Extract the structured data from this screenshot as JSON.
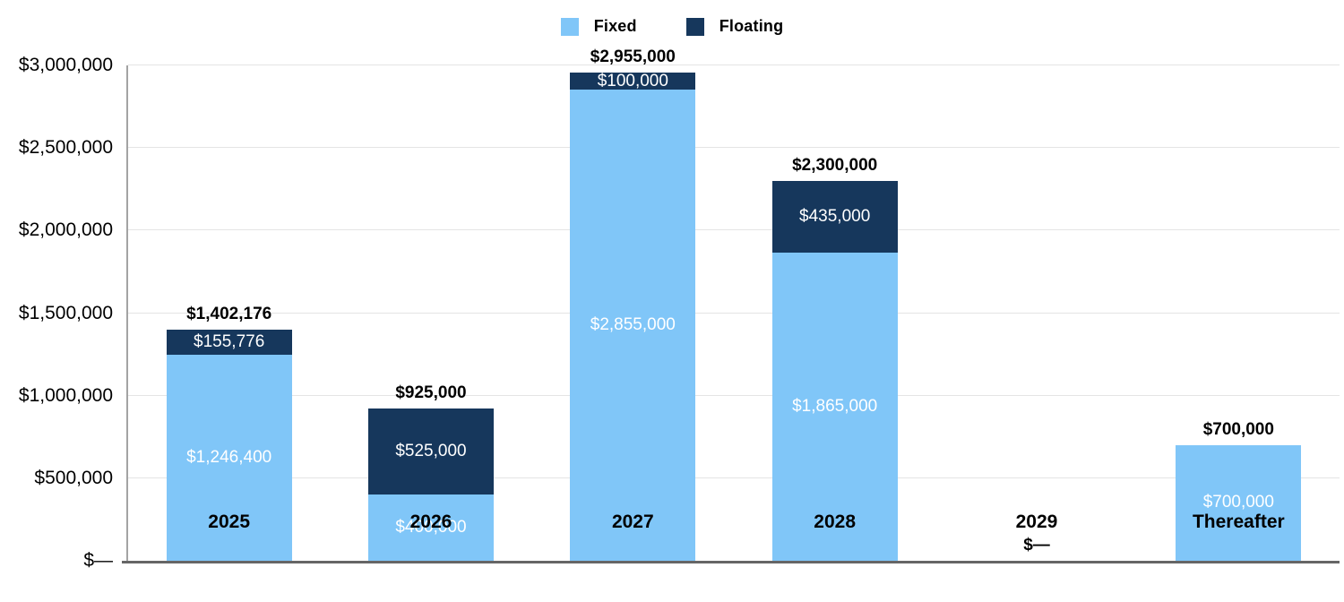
{
  "legend": {
    "items": [
      {
        "label": "Fixed",
        "color": "#80C6F8"
      },
      {
        "label": "Floating",
        "color": "#16375C"
      }
    ]
  },
  "chart_data": {
    "type": "bar",
    "stacked": true,
    "title": "",
    "categories": [
      "2025",
      "2026",
      "2027",
      "2028",
      "2029",
      "Thereafter"
    ],
    "series": [
      {
        "name": "Fixed",
        "color": "#80C6F8",
        "values": [
          1246400,
          400000,
          2855000,
          1865000,
          0,
          700000
        ],
        "labels": [
          "$1,246,400",
          "$400,000",
          "$2,855,000",
          "$1,865,000",
          "",
          "$700,000"
        ]
      },
      {
        "name": "Floating",
        "color": "#16375C",
        "values": [
          155776,
          525000,
          100000,
          435000,
          0,
          0
        ],
        "labels": [
          "$155,776",
          "$525,000",
          "$100,000",
          "$435,000",
          "",
          ""
        ]
      }
    ],
    "totals": [
      1402176,
      925000,
      2955000,
      2300000,
      0,
      700000
    ],
    "total_labels": [
      "$1,402,176",
      "$925,000",
      "$2,955,000",
      "$2,300,000",
      "$—",
      "$700,000"
    ],
    "xlabel": "",
    "ylabel": "",
    "ylim": [
      0,
      3000000
    ],
    "yticks": [
      0,
      500000,
      1000000,
      1500000,
      2000000,
      2500000,
      3000000
    ],
    "ytick_labels": [
      "$—",
      "$500,000",
      "$1,000,000",
      "$1,500,000",
      "$2,000,000",
      "$2,500,000",
      "$3,000,000"
    ],
    "grid": true,
    "legend_position": "top",
    "bar_label_color": "#ffffff",
    "total_label_color": "#000000"
  }
}
